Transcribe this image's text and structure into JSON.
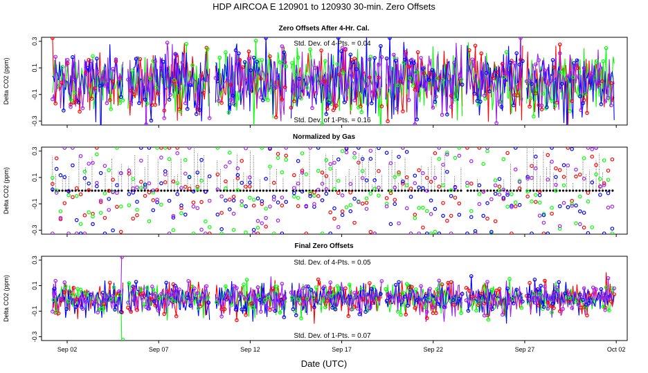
{
  "chart_data": {
    "type": "scatter",
    "title": "HDP    AIRCOA E    120901 to 120930    30-min. Zero Offsets",
    "xlabel": "Date (UTC)",
    "x_ticks": [
      "Sep 02",
      "Sep 07",
      "Sep 12",
      "Sep 17",
      "Sep 22",
      "Sep 27",
      "Oct 02"
    ],
    "x_tick_days": [
      2,
      7,
      12,
      17,
      22,
      27,
      32
    ],
    "xlim_days": [
      0.6,
      32.6
    ],
    "data_span_days": [
      1.2,
      31.9
    ],
    "gaps_days": [
      [
        5.1,
        5.3
      ],
      [
        9.8,
        10.1
      ],
      [
        14.0,
        14.2
      ],
      [
        19.2,
        19.4
      ],
      [
        23.6,
        23.8
      ],
      [
        26.9,
        27.1
      ]
    ],
    "series_colors": {
      "red": "#ff0000",
      "green": "#00ff00",
      "blue": "#0000ff",
      "purple": "#a020f0",
      "black": "#000000"
    },
    "panels": [
      {
        "title": "Zero Offsets After 4-Hr. Cal.",
        "ylabel": "Delta CO2 (ppm)",
        "ylim": [
          -0.33,
          0.33
        ],
        "yticks": [
          -0.3,
          -0.1,
          0.1,
          0.3
        ],
        "ytick_labels": [
          "-0.3",
          "-0.1",
          "0.1",
          "0.3"
        ],
        "annotation_top": "Std. Dev. of 4-Pts. = 0.04",
        "annotation_bottom": "Std. Dev. of 1-Pts. = 0.16",
        "center": 0.0,
        "spread": 0.12,
        "mode": "raw"
      },
      {
        "title": "Normalized by Gas",
        "ylabel": "Delta CO2 (ppm)",
        "ylim": [
          -0.33,
          0.33
        ],
        "yticks": [
          -0.3,
          -0.1,
          0.1,
          0.3
        ],
        "ytick_labels": [
          "-0.3",
          "-0.1",
          "0.1",
          "0.3"
        ],
        "annotation_top": "",
        "annotation_bottom": "",
        "center": 0.0,
        "spread": 0.13,
        "baseline": 0.0,
        "mode": "normalized"
      },
      {
        "title": "Final Zero Offsets",
        "ylabel": "Delta CO2 (ppm)",
        "ylim": [
          -0.33,
          0.33
        ],
        "yticks": [
          -0.3,
          -0.1,
          0.1,
          0.3
        ],
        "ytick_labels": [
          "-0.3",
          "-0.1",
          "0.1",
          "0.3"
        ],
        "annotation_top": "Std. Dev. of 4-Pts. = 0.05",
        "annotation_bottom": "Std. Dev. of 1-Pts. = 0.07",
        "center": 0.0,
        "spread": 0.06,
        "spike_day": 5.1,
        "mode": "final"
      }
    ]
  }
}
